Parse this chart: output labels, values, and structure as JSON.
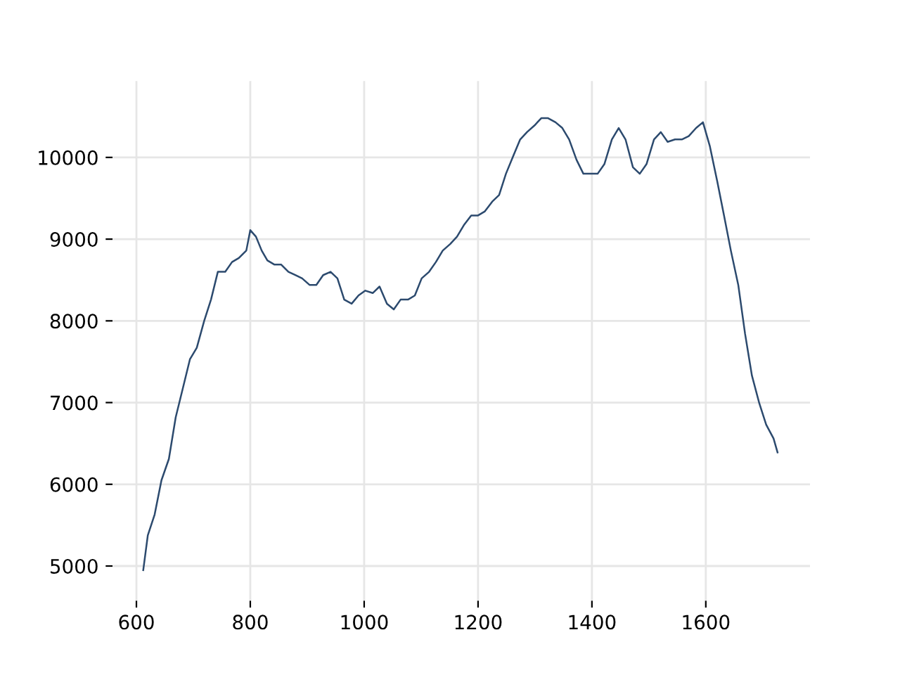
{
  "chart_data": {
    "type": "line",
    "x": [
      612,
      620,
      632,
      644,
      657,
      669,
      681,
      694,
      706,
      719,
      731,
      743,
      756,
      768,
      780,
      793,
      800,
      810,
      820,
      830,
      842,
      854,
      867,
      879,
      891,
      904,
      916,
      928,
      941,
      953,
      965,
      978,
      990,
      1002,
      1015,
      1027,
      1040,
      1052,
      1064,
      1077,
      1089,
      1101,
      1114,
      1126,
      1138,
      1151,
      1163,
      1175,
      1188,
      1200,
      1212,
      1225,
      1237,
      1249,
      1262,
      1274,
      1286,
      1299,
      1311,
      1323,
      1336,
      1348,
      1360,
      1373,
      1385,
      1398,
      1410,
      1422,
      1435,
      1447,
      1459,
      1472,
      1484,
      1496,
      1509,
      1521,
      1533,
      1546,
      1558,
      1570,
      1583,
      1595,
      1607,
      1620,
      1632,
      1644,
      1657,
      1669,
      1681,
      1694,
      1706,
      1719,
      1726
    ],
    "series": [
      {
        "color": "#2c4a6e",
        "values": [
          4950,
          5375,
          5630,
          6050,
          6310,
          6820,
          7160,
          7530,
          7670,
          8000,
          8260,
          8600,
          8600,
          8720,
          8770,
          8860,
          9110,
          9030,
          8860,
          8740,
          8690,
          8690,
          8600,
          8560,
          8520,
          8440,
          8440,
          8560,
          8600,
          8520,
          8260,
          8210,
          8310,
          8370,
          8340,
          8420,
          8210,
          8140,
          8260,
          8260,
          8310,
          8520,
          8600,
          8720,
          8860,
          8940,
          9030,
          9170,
          9290,
          9290,
          9340,
          9460,
          9540,
          9800,
          10020,
          10220,
          10310,
          10390,
          10480,
          10480,
          10430,
          10360,
          10220,
          9970,
          9800,
          9800,
          9800,
          9920,
          10220,
          10360,
          10220,
          9880,
          9800,
          9920,
          10220,
          10310,
          10190,
          10220,
          10220,
          10260,
          10360,
          10430,
          10140,
          9710,
          9290,
          8860,
          8440,
          7840,
          7330,
          6990,
          6730,
          6560,
          6390
        ]
      }
    ],
    "xlim": [
      558,
      1783
    ],
    "ylim": [
      4575,
      10935
    ],
    "xticks": [
      600,
      800,
      1000,
      1200,
      1400,
      1600
    ],
    "yticks": [
      5000,
      6000,
      7000,
      8000,
      9000,
      10000
    ],
    "grid": true,
    "legend": false
  }
}
